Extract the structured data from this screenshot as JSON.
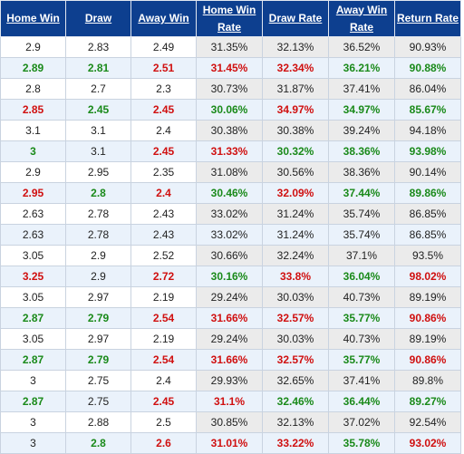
{
  "header": {
    "home_win": "Home Win",
    "draw": "Draw",
    "away_win": "Away Win",
    "home_win_rate": "Home Win Rate",
    "draw_rate": "Draw Rate",
    "away_win_rate": "Away Win Rate",
    "return_rate": "Return Rate"
  },
  "colors": {
    "header_bg": "#0d3f8f",
    "up": "#1a8a1a",
    "down": "#d01010",
    "alt_row_bg": "#eaf2fb",
    "rate_bg": "#ebebeb"
  },
  "rows": [
    {
      "cells": [
        {
          "v": "2.9",
          "c": "same"
        },
        {
          "v": "2.83",
          "c": "same"
        },
        {
          "v": "2.49",
          "c": "same"
        },
        {
          "v": "31.35%",
          "c": "same"
        },
        {
          "v": "32.13%",
          "c": "same"
        },
        {
          "v": "36.52%",
          "c": "same"
        },
        {
          "v": "90.93%",
          "c": "same"
        }
      ]
    },
    {
      "cells": [
        {
          "v": "2.89",
          "c": "up"
        },
        {
          "v": "2.81",
          "c": "up"
        },
        {
          "v": "2.51",
          "c": "down"
        },
        {
          "v": "31.45%",
          "c": "down"
        },
        {
          "v": "32.34%",
          "c": "down"
        },
        {
          "v": "36.21%",
          "c": "up"
        },
        {
          "v": "90.88%",
          "c": "up"
        }
      ]
    },
    {
      "cells": [
        {
          "v": "2.8",
          "c": "same"
        },
        {
          "v": "2.7",
          "c": "same"
        },
        {
          "v": "2.3",
          "c": "same"
        },
        {
          "v": "30.73%",
          "c": "same"
        },
        {
          "v": "31.87%",
          "c": "same"
        },
        {
          "v": "37.41%",
          "c": "same"
        },
        {
          "v": "86.04%",
          "c": "same"
        }
      ]
    },
    {
      "cells": [
        {
          "v": "2.85",
          "c": "down"
        },
        {
          "v": "2.45",
          "c": "up"
        },
        {
          "v": "2.45",
          "c": "down"
        },
        {
          "v": "30.06%",
          "c": "up"
        },
        {
          "v": "34.97%",
          "c": "down"
        },
        {
          "v": "34.97%",
          "c": "up"
        },
        {
          "v": "85.67%",
          "c": "up"
        }
      ]
    },
    {
      "cells": [
        {
          "v": "3.1",
          "c": "same"
        },
        {
          "v": "3.1",
          "c": "same"
        },
        {
          "v": "2.4",
          "c": "same"
        },
        {
          "v": "30.38%",
          "c": "same"
        },
        {
          "v": "30.38%",
          "c": "same"
        },
        {
          "v": "39.24%",
          "c": "same"
        },
        {
          "v": "94.18%",
          "c": "same"
        }
      ]
    },
    {
      "cells": [
        {
          "v": "3",
          "c": "up"
        },
        {
          "v": "3.1",
          "c": "same"
        },
        {
          "v": "2.45",
          "c": "down"
        },
        {
          "v": "31.33%",
          "c": "down"
        },
        {
          "v": "30.32%",
          "c": "up"
        },
        {
          "v": "38.36%",
          "c": "up"
        },
        {
          "v": "93.98%",
          "c": "up"
        }
      ]
    },
    {
      "cells": [
        {
          "v": "2.9",
          "c": "same"
        },
        {
          "v": "2.95",
          "c": "same"
        },
        {
          "v": "2.35",
          "c": "same"
        },
        {
          "v": "31.08%",
          "c": "same"
        },
        {
          "v": "30.56%",
          "c": "same"
        },
        {
          "v": "38.36%",
          "c": "same"
        },
        {
          "v": "90.14%",
          "c": "same"
        }
      ]
    },
    {
      "cells": [
        {
          "v": "2.95",
          "c": "down"
        },
        {
          "v": "2.8",
          "c": "up"
        },
        {
          "v": "2.4",
          "c": "down"
        },
        {
          "v": "30.46%",
          "c": "up"
        },
        {
          "v": "32.09%",
          "c": "down"
        },
        {
          "v": "37.44%",
          "c": "up"
        },
        {
          "v": "89.86%",
          "c": "up"
        }
      ]
    },
    {
      "cells": [
        {
          "v": "2.63",
          "c": "same"
        },
        {
          "v": "2.78",
          "c": "same"
        },
        {
          "v": "2.43",
          "c": "same"
        },
        {
          "v": "33.02%",
          "c": "same"
        },
        {
          "v": "31.24%",
          "c": "same"
        },
        {
          "v": "35.74%",
          "c": "same"
        },
        {
          "v": "86.85%",
          "c": "same"
        }
      ]
    },
    {
      "cells": [
        {
          "v": "2.63",
          "c": "same"
        },
        {
          "v": "2.78",
          "c": "same"
        },
        {
          "v": "2.43",
          "c": "same"
        },
        {
          "v": "33.02%",
          "c": "same"
        },
        {
          "v": "31.24%",
          "c": "same"
        },
        {
          "v": "35.74%",
          "c": "same"
        },
        {
          "v": "86.85%",
          "c": "same"
        }
      ]
    },
    {
      "cells": [
        {
          "v": "3.05",
          "c": "same"
        },
        {
          "v": "2.9",
          "c": "same"
        },
        {
          "v": "2.52",
          "c": "same"
        },
        {
          "v": "30.66%",
          "c": "same"
        },
        {
          "v": "32.24%",
          "c": "same"
        },
        {
          "v": "37.1%",
          "c": "same"
        },
        {
          "v": "93.5%",
          "c": "same"
        }
      ]
    },
    {
      "cells": [
        {
          "v": "3.25",
          "c": "down"
        },
        {
          "v": "2.9",
          "c": "same"
        },
        {
          "v": "2.72",
          "c": "down"
        },
        {
          "v": "30.16%",
          "c": "up"
        },
        {
          "v": "33.8%",
          "c": "down"
        },
        {
          "v": "36.04%",
          "c": "up"
        },
        {
          "v": "98.02%",
          "c": "down"
        }
      ]
    },
    {
      "cells": [
        {
          "v": "3.05",
          "c": "same"
        },
        {
          "v": "2.97",
          "c": "same"
        },
        {
          "v": "2.19",
          "c": "same"
        },
        {
          "v": "29.24%",
          "c": "same"
        },
        {
          "v": "30.03%",
          "c": "same"
        },
        {
          "v": "40.73%",
          "c": "same"
        },
        {
          "v": "89.19%",
          "c": "same"
        }
      ]
    },
    {
      "cells": [
        {
          "v": "2.87",
          "c": "up"
        },
        {
          "v": "2.79",
          "c": "up"
        },
        {
          "v": "2.54",
          "c": "down"
        },
        {
          "v": "31.66%",
          "c": "down"
        },
        {
          "v": "32.57%",
          "c": "down"
        },
        {
          "v": "35.77%",
          "c": "up"
        },
        {
          "v": "90.86%",
          "c": "down"
        }
      ]
    },
    {
      "cells": [
        {
          "v": "3.05",
          "c": "same"
        },
        {
          "v": "2.97",
          "c": "same"
        },
        {
          "v": "2.19",
          "c": "same"
        },
        {
          "v": "29.24%",
          "c": "same"
        },
        {
          "v": "30.03%",
          "c": "same"
        },
        {
          "v": "40.73%",
          "c": "same"
        },
        {
          "v": "89.19%",
          "c": "same"
        }
      ]
    },
    {
      "cells": [
        {
          "v": "2.87",
          "c": "up"
        },
        {
          "v": "2.79",
          "c": "up"
        },
        {
          "v": "2.54",
          "c": "down"
        },
        {
          "v": "31.66%",
          "c": "down"
        },
        {
          "v": "32.57%",
          "c": "down"
        },
        {
          "v": "35.77%",
          "c": "up"
        },
        {
          "v": "90.86%",
          "c": "down"
        }
      ]
    },
    {
      "cells": [
        {
          "v": "3",
          "c": "same"
        },
        {
          "v": "2.75",
          "c": "same"
        },
        {
          "v": "2.4",
          "c": "same"
        },
        {
          "v": "29.93%",
          "c": "same"
        },
        {
          "v": "32.65%",
          "c": "same"
        },
        {
          "v": "37.41%",
          "c": "same"
        },
        {
          "v": "89.8%",
          "c": "same"
        }
      ]
    },
    {
      "cells": [
        {
          "v": "2.87",
          "c": "up"
        },
        {
          "v": "2.75",
          "c": "same"
        },
        {
          "v": "2.45",
          "c": "down"
        },
        {
          "v": "31.1%",
          "c": "down"
        },
        {
          "v": "32.46%",
          "c": "up"
        },
        {
          "v": "36.44%",
          "c": "up"
        },
        {
          "v": "89.27%",
          "c": "up"
        }
      ]
    },
    {
      "cells": [
        {
          "v": "3",
          "c": "same"
        },
        {
          "v": "2.88",
          "c": "same"
        },
        {
          "v": "2.5",
          "c": "same"
        },
        {
          "v": "30.85%",
          "c": "same"
        },
        {
          "v": "32.13%",
          "c": "same"
        },
        {
          "v": "37.02%",
          "c": "same"
        },
        {
          "v": "92.54%",
          "c": "same"
        }
      ]
    },
    {
      "cells": [
        {
          "v": "3",
          "c": "same"
        },
        {
          "v": "2.8",
          "c": "up"
        },
        {
          "v": "2.6",
          "c": "down"
        },
        {
          "v": "31.01%",
          "c": "down"
        },
        {
          "v": "33.22%",
          "c": "down"
        },
        {
          "v": "35.78%",
          "c": "up"
        },
        {
          "v": "93.02%",
          "c": "down"
        }
      ]
    }
  ]
}
